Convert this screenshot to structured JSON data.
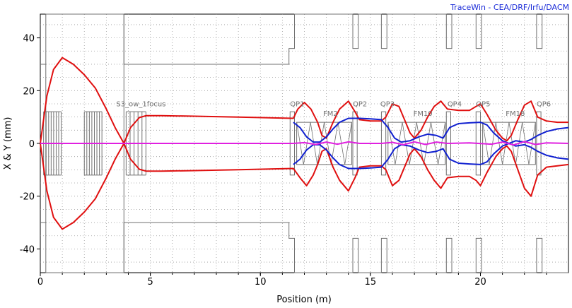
{
  "credit": "TraceWin - CEA/DRF/Irfu/DACM",
  "chart_data": {
    "type": "line",
    "title": "",
    "xlabel": "Position (m)",
    "ylabel": "X & Y (mm)",
    "xlim": [
      0,
      24
    ],
    "ylim": [
      -49,
      49
    ],
    "x_ticks": [
      {
        "value": 0,
        "label": "0"
      },
      {
        "value": 5,
        "label": "5"
      },
      {
        "value": 10,
        "label": "10"
      },
      {
        "value": 15,
        "label": "15"
      },
      {
        "value": 20,
        "label": "20"
      }
    ],
    "y_ticks": [
      {
        "value": 40,
        "label": "40"
      },
      {
        "value": 20,
        "label": "20"
      },
      {
        "value": 0,
        "label": "0"
      },
      {
        "value": -20,
        "label": "-20"
      },
      {
        "value": -40,
        "label": "-40"
      }
    ],
    "grid": true,
    "colors": {
      "x_envelope": "#e01010",
      "y_envelope": "#1020d0",
      "centroid": "#e020e0",
      "elements": "#707070",
      "grid": "#9a9a9a",
      "credit": "#1a2bd8"
    },
    "series": [
      {
        "key": "x_envelope",
        "x": [
          0,
          0.3,
          0.6,
          1.0,
          1.5,
          2.0,
          2.5,
          3.0,
          3.4,
          3.8,
          4.1,
          4.5,
          4.8,
          5.5,
          7,
          9,
          11.5,
          11.7,
          12.0,
          12.3,
          12.6,
          12.8,
          13.0,
          13.3,
          13.6,
          14.0,
          14.3,
          14.5,
          15.0,
          15.5,
          15.7,
          16.0,
          16.3,
          16.6,
          16.8,
          17.0,
          17.3,
          17.6,
          17.9,
          18.2,
          18.5,
          19.0,
          19.5,
          19.8,
          20.0,
          20.3,
          20.7,
          21.0,
          21.2,
          21.4,
          21.7,
          22.0,
          22.3,
          22.6,
          23.0,
          23.5,
          24
        ],
        "y": [
          0,
          18,
          28,
          32.5,
          30,
          26,
          21,
          13,
          6,
          0,
          6,
          9.8,
          10.5,
          10.5,
          10.3,
          10,
          9.5,
          13,
          15.5,
          13,
          8,
          3,
          2,
          8,
          13,
          16,
          12,
          9,
          8.5,
          8.5,
          10,
          15,
          14,
          8,
          4,
          2,
          5,
          10,
          14,
          16,
          13,
          12.5,
          12.5,
          14,
          15,
          11,
          5,
          2,
          1,
          3,
          9,
          14.5,
          16,
          10,
          8.5,
          8,
          8
        ]
      },
      {
        "key": "x_envelope_lower",
        "x": [
          0,
          0.3,
          0.6,
          1.0,
          1.5,
          2.0,
          2.5,
          3.0,
          3.4,
          3.8,
          4.1,
          4.5,
          4.8,
          5.5,
          7,
          9,
          11.5,
          11.8,
          12.1,
          12.4,
          12.6,
          12.8,
          13.0,
          13.3,
          13.6,
          14.0,
          14.3,
          14.5,
          15.0,
          15.5,
          15.7,
          16.0,
          16.3,
          16.6,
          16.8,
          17.0,
          17.3,
          17.6,
          17.9,
          18.2,
          18.5,
          19.0,
          19.5,
          19.8,
          20.0,
          20.3,
          20.7,
          21.0,
          21.2,
          21.4,
          21.7,
          22.0,
          22.3,
          22.6,
          23.0,
          23.5,
          24
        ],
        "y": [
          0,
          -18,
          -28,
          -32.5,
          -30,
          -26,
          -21,
          -13,
          -6,
          0,
          -6,
          -9.8,
          -10.5,
          -10.5,
          -10.3,
          -10,
          -9.5,
          -13,
          -16,
          -12,
          -8,
          -3,
          -2,
          -9,
          -14,
          -18,
          -13,
          -9,
          -8.5,
          -8.5,
          -10,
          -16,
          -14,
          -8,
          -4,
          -2,
          -5,
          -10,
          -14,
          -17,
          -13,
          -12.5,
          -12.5,
          -14,
          -16,
          -11,
          -5,
          -2,
          -1,
          -3,
          -10,
          -17,
          -20,
          -12,
          -9,
          -8.5,
          -8
        ]
      },
      {
        "key": "y_envelope",
        "x": [
          11.5,
          11.8,
          12.1,
          12.4,
          12.7,
          13.0,
          13.3,
          13.6,
          14.0,
          14.3,
          14.5,
          15.0,
          15.5,
          15.8,
          16.1,
          16.4,
          16.8,
          17.2,
          17.6,
          18.0,
          18.3,
          18.6,
          19.0,
          19.5,
          20.0,
          20.3,
          20.6,
          21.0,
          21.3,
          21.6,
          22.0,
          22.3,
          22.6,
          23.0,
          23.5,
          24
        ],
        "y": [
          8,
          6,
          2.5,
          0.5,
          0.5,
          2.5,
          5.5,
          8,
          9.5,
          9.5,
          9.5,
          9.3,
          9,
          6,
          2,
          0.5,
          1,
          2.5,
          3.5,
          3,
          2,
          6,
          7.5,
          7.8,
          8,
          7,
          4,
          1,
          0,
          1,
          0.5,
          1.5,
          3,
          4.5,
          5.5,
          6
        ]
      },
      {
        "key": "y_envelope_lower",
        "x": [
          11.5,
          11.8,
          12.1,
          12.4,
          12.7,
          13.0,
          13.3,
          13.6,
          14.0,
          14.3,
          14.5,
          15.0,
          15.5,
          15.8,
          16.1,
          16.4,
          16.8,
          17.2,
          17.6,
          18.0,
          18.3,
          18.6,
          19.0,
          19.5,
          20.0,
          20.3,
          20.6,
          21.0,
          21.3,
          21.6,
          22.0,
          22.3,
          22.6,
          23.0,
          23.5,
          24
        ],
        "y": [
          -8,
          -6,
          -2.5,
          -0.5,
          -0.5,
          -2.5,
          -5.5,
          -8,
          -9.5,
          -9.5,
          -9.5,
          -9.3,
          -9,
          -6,
          -2,
          -0.5,
          -1,
          -2.5,
          -3.5,
          -3,
          -2,
          -6,
          -7.5,
          -7.8,
          -8,
          -7,
          -4,
          -1,
          0,
          -1,
          -0.5,
          -1.5,
          -3,
          -4.5,
          -5.5,
          -6
        ]
      },
      {
        "key": "centroid",
        "x": [
          0,
          11.5,
          12.0,
          12.5,
          13.0,
          13.5,
          14.0,
          14.5,
          15.5,
          16.0,
          16.5,
          17.0,
          17.5,
          18.0,
          18.5,
          19.5,
          20.5,
          21.0,
          21.5,
          22.0,
          22.5,
          23.0,
          24
        ],
        "y": [
          0,
          0,
          0.3,
          -0.4,
          0.5,
          -0.3,
          0.6,
          0,
          0,
          0.4,
          -0.5,
          0.6,
          -0.4,
          0.5,
          0,
          0.2,
          -0.3,
          0.5,
          -0.6,
          0.7,
          -0.4,
          0.2,
          0
        ]
      }
    ],
    "element_labels": [
      {
        "text": "S3_ow_1focus",
        "x": 3.45,
        "y": 14
      },
      {
        "text": "QP1",
        "x": 11.35,
        "y": 14
      },
      {
        "text": "FM2",
        "x": 12.85,
        "y": 10.5
      },
      {
        "text": "QP2",
        "x": 14.2,
        "y": 14
      },
      {
        "text": "QP3",
        "x": 15.45,
        "y": 14
      },
      {
        "text": "FM10",
        "x": 16.95,
        "y": 10.5
      },
      {
        "text": "QP4",
        "x": 18.5,
        "y": 14
      },
      {
        "text": "QP5",
        "x": 19.8,
        "y": 14
      },
      {
        "text": "FM18",
        "x": 21.15,
        "y": 10.5
      },
      {
        "text": "QP6",
        "x": 22.55,
        "y": 14
      }
    ],
    "aperture": [
      {
        "x": [
          0,
          0.25,
          0.25,
          3.8,
          3.8,
          11.3,
          11.3,
          11.55,
          11.55,
          14.2,
          14.2,
          14.45,
          14.45,
          15.5,
          15.5,
          15.75,
          15.75,
          18.45,
          18.45,
          18.7,
          18.7,
          19.8,
          19.8,
          20.05,
          20.05,
          22.55,
          22.55,
          22.8,
          22.8,
          24
        ],
        "y": [
          30,
          30,
          49,
          49,
          30,
          30,
          36,
          36,
          49,
          49,
          36,
          36,
          49,
          49,
          36,
          36,
          49,
          49,
          36,
          36,
          49,
          49,
          36,
          36,
          49,
          49,
          36,
          36,
          49,
          49
        ]
      },
      {
        "x": [
          0,
          0.25,
          0.25,
          3.8,
          3.8,
          11.3,
          11.3,
          11.55,
          11.55,
          14.2,
          14.2,
          14.45,
          14.45,
          15.5,
          15.5,
          15.75,
          15.75,
          18.45,
          18.45,
          18.7,
          18.7,
          19.8,
          19.8,
          20.05,
          20.05,
          22.55,
          22.55,
          22.8,
          22.8,
          24
        ],
        "y": [
          -30,
          -30,
          -49,
          -49,
          -30,
          -30,
          -36,
          -36,
          -49,
          -49,
          -36,
          -36,
          -49,
          -49,
          -36,
          -36,
          -49,
          -49,
          -36,
          -36,
          -49,
          -49,
          -36,
          -36,
          -49,
          -49,
          -36,
          -36,
          -49,
          -49
        ]
      }
    ]
  }
}
